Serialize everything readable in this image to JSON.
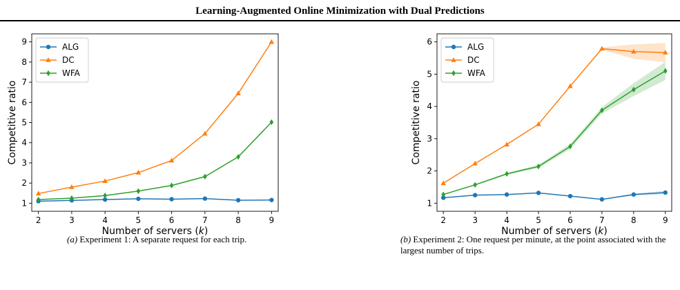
{
  "header": {
    "title": "Learning-Augmented Online Minimization with Dual Predictions"
  },
  "chart_data": [
    {
      "type": "line",
      "xlabel": "Number of servers (k)",
      "ylabel": "Competitive ratio",
      "x": [
        2,
        3,
        4,
        5,
        6,
        7,
        8,
        9
      ],
      "xlim": [
        1.8,
        9.2
      ],
      "ylim": [
        0.6,
        9.4
      ],
      "yticks": [
        1,
        2,
        3,
        4,
        5,
        6,
        7,
        8,
        9
      ],
      "legend": "top-left",
      "series": [
        {
          "name": "ALG",
          "color": "#1f77b4",
          "marker": "circle",
          "values": [
            1.1,
            1.14,
            1.18,
            1.22,
            1.2,
            1.23,
            1.15,
            1.16
          ]
        },
        {
          "name": "DC",
          "color": "#ff7f0e",
          "marker": "triangle",
          "values": [
            1.48,
            1.8,
            2.1,
            2.52,
            3.12,
            4.45,
            6.45,
            9.0
          ]
        },
        {
          "name": "WFA",
          "color": "#2ca02c",
          "marker": "diamond",
          "values": [
            1.18,
            1.25,
            1.38,
            1.6,
            1.88,
            2.32,
            3.3,
            5.02
          ]
        }
      ]
    },
    {
      "type": "line",
      "xlabel": "Number of servers (k)",
      "ylabel": "Competitive ratio",
      "x": [
        2,
        3,
        4,
        5,
        6,
        7,
        8,
        9
      ],
      "xlim": [
        1.8,
        9.2
      ],
      "ylim": [
        0.75,
        6.25
      ],
      "yticks": [
        1,
        2,
        3,
        4,
        5,
        6
      ],
      "legend": "top-left",
      "series": [
        {
          "name": "ALG",
          "color": "#1f77b4",
          "marker": "circle",
          "values": [
            1.17,
            1.25,
            1.27,
            1.32,
            1.22,
            1.12,
            1.27,
            1.33
          ],
          "band": [
            0.01,
            0.01,
            0.01,
            0.01,
            0.01,
            0.01,
            0.03,
            0.05
          ]
        },
        {
          "name": "DC",
          "color": "#ff7f0e",
          "marker": "triangle",
          "values": [
            1.62,
            2.23,
            2.82,
            3.45,
            4.63,
            5.79,
            5.7,
            5.67
          ],
          "band": [
            0.0,
            0.0,
            0.0,
            0.0,
            0.02,
            0.04,
            0.22,
            0.3
          ]
        },
        {
          "name": "WFA",
          "color": "#2ca02c",
          "marker": "diamond",
          "values": [
            1.27,
            1.57,
            1.91,
            2.14,
            2.76,
            3.88,
            4.52,
            5.1
          ],
          "band": [
            0.01,
            0.02,
            0.03,
            0.05,
            0.08,
            0.1,
            0.2,
            0.28
          ]
        }
      ]
    }
  ],
  "captions": [
    {
      "tag": "(a)",
      "text": "Experiment 1: A separate request for each trip."
    },
    {
      "tag": "(b)",
      "text": "Experiment 2: One request per minute, at the point associated with the largest number of trips."
    }
  ]
}
